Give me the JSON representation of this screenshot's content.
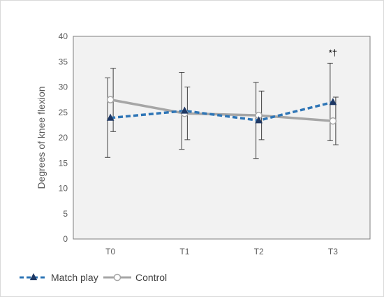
{
  "chart_data": {
    "type": "line",
    "title": "",
    "xlabel": "",
    "ylabel": "Degrees of knee flexion",
    "categories": [
      "T0",
      "T1",
      "T2",
      "T3"
    ],
    "ylim": [
      0,
      40
    ],
    "yticks": [
      0,
      5,
      10,
      15,
      20,
      25,
      30,
      35,
      40
    ],
    "grid": false,
    "plot_background": "#f2f2f2",
    "legend_position": "bottom-left",
    "series": [
      {
        "name": "Match play",
        "values": [
          23.9,
          25.3,
          23.4,
          27.0
        ],
        "error_low": [
          16.1,
          17.7,
          15.9,
          19.4
        ],
        "error_high": [
          31.8,
          32.9,
          30.9,
          34.7
        ],
        "color": "#2e75b6",
        "line_style": "dashed",
        "marker": "triangle",
        "marker_color": "#1f3864"
      },
      {
        "name": "Control",
        "values": [
          27.5,
          24.8,
          24.4,
          23.3
        ],
        "error_low": [
          21.2,
          19.6,
          19.6,
          18.6
        ],
        "error_high": [
          33.7,
          30.0,
          29.2,
          28.0
        ],
        "color": "#a6a6a6",
        "line_style": "solid",
        "marker": "circle-open",
        "marker_color": "#a6a6a6"
      }
    ],
    "annotations": [
      {
        "category": "T3",
        "text": "*†"
      }
    ]
  }
}
